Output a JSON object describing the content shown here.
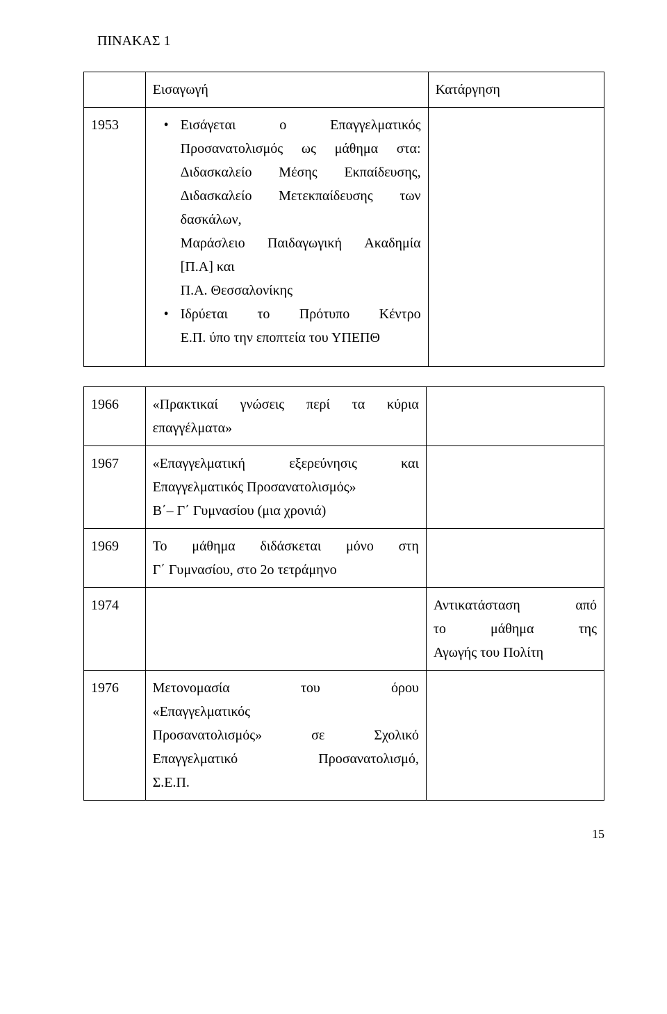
{
  "heading": "ΠΙΝΑΚΑΣ 1",
  "table1": {
    "header_mid": "Εισαγωγή",
    "header_right": "Κατάργηση",
    "year": "1953",
    "bullet1_l1_w1": "Εισάγεται",
    "bullet1_l1_w2": "ο",
    "bullet1_l1_w3": "Επαγγελματικός",
    "bullet1_l2_w1": "Προσανατολισμός",
    "bullet1_l2_w2": "ως",
    "bullet1_l2_w3": "μάθημα",
    "bullet1_l2_w4": "στα:",
    "bullet1_l3_w1": "Διδασκαλείο",
    "bullet1_l3_w2": "Μέσης",
    "bullet1_l3_w3": "Εκπαίδευσης,",
    "bullet1_l4_w1": "Διδασκαλείο",
    "bullet1_l4_w2": "Μετεκπαίδευσης",
    "bullet1_l4_w3": "των",
    "bullet1_l5": "δασκάλων,",
    "bullet1_l6_w1": "Μαράσλειο",
    "bullet1_l6_w2": "Παιδαγωγική",
    "bullet1_l6_w3": "Ακαδημία",
    "bullet1_l7": "[Π.Α] και",
    "bullet1_l8": "Π.Α. Θεσσαλονίκης",
    "bullet2_l1_w1": "Ιδρύεται",
    "bullet2_l1_w2": "το",
    "bullet2_l1_w3": "Πρότυπο",
    "bullet2_l1_w4": "Κέντρο",
    "bullet2_l2": "Ε.Π. ύπο την εποπτεία του ΥΠΕΠΘ"
  },
  "table2": {
    "r1_year": "1966",
    "r1_l1_w1": "«Πρακτικαί",
    "r1_l1_w2": "γνώσεις",
    "r1_l1_w3": "περί",
    "r1_l1_w4": "τα",
    "r1_l1_w5": "κύρια",
    "r1_l2": "επαγγέλματα»",
    "r2_year": "1967",
    "r2_l1_w1": "«Επαγγελματική",
    "r2_l1_w2": "εξερεύνησις",
    "r2_l1_w3": "και",
    "r2_l2": "Επαγγελματικός Προσανατολισμός»",
    "r2_l3": "Β΄– Γ΄ Γυμνασίου (μια χρονιά)",
    "r3_year": "1969",
    "r3_l1_w1": "Το",
    "r3_l1_w2": "μάθημα",
    "r3_l1_w3": "διδάσκεται",
    "r3_l1_w4": "μόνο",
    "r3_l1_w5": "στη",
    "r3_l2": "Γ΄ Γυμνασίου, στο 2ο τετράμηνο",
    "r4_year": "1974",
    "r4_right_l1_w1": "Αντικατάσταση",
    "r4_right_l1_w2": "από",
    "r4_right_l2_w1": "το",
    "r4_right_l2_w2": "μάθημα",
    "r4_right_l2_w3": "της",
    "r4_right_l3": "Αγωγής του Πολίτη",
    "r5_year": "1976",
    "r5_l1_w1": "Μετονομασία",
    "r5_l1_w2": "του",
    "r5_l1_w3": "όρου",
    "r5_l2": "«Επαγγελματικός",
    "r5_l3_w1": "Προσανατολισμός»",
    "r5_l3_w2": "σε",
    "r5_l3_w3": "Σχολικό",
    "r5_l4_w1": "Επαγγελματικό",
    "r5_l4_w2": "Προσανατολισμό,",
    "r5_l5": "Σ.Ε.Π."
  },
  "page_number": "15"
}
